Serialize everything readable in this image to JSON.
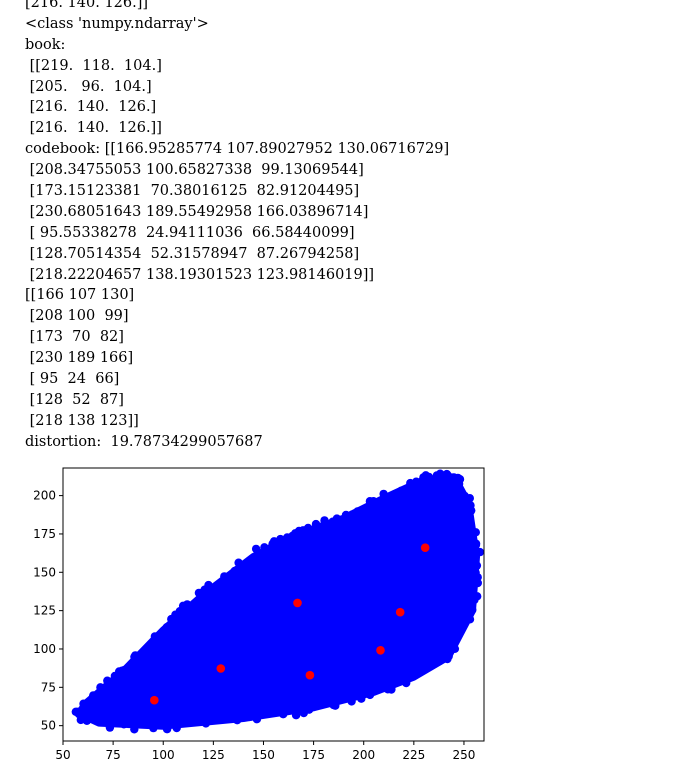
{
  "output_lines": [
    "[216. 140. 126.]]",
    "<class 'numpy.ndarray'>",
    "book:",
    " [[219.  118.  104.]",
    " [205.   96.  104.]",
    " [216.  140.  126.]",
    " [216.  140.  126.]]",
    "codebook: [[166.95285774 107.89027952 130.06716729]",
    " [208.34755053 100.65827338  99.13069544]",
    " [173.15123381  70.38016125  82.91204495]",
    " [230.68051643 189.55492958 166.03896714]",
    " [ 95.55338278  24.94111036  66.58440099]",
    " [128.70514354  52.31578947  87.26794258]",
    " [218.22204657 138.19301523 123.98146019]]",
    "[[166 107 130]",
    " [208 100  99]",
    " [173  70  82]",
    " [230 189 166]",
    " [ 95  24  66]",
    " [128  52  87]",
    " [218 138 123]]",
    "distortion:  19.78734299057687"
  ],
  "chart_data": {
    "type": "scatter",
    "title": "",
    "xlabel": "",
    "ylabel": "",
    "xlim": [
      50,
      260
    ],
    "ylim": [
      40,
      218
    ],
    "xticks": [
      50,
      75,
      100,
      125,
      150,
      175,
      200,
      225,
      250
    ],
    "yticks": [
      50,
      75,
      100,
      125,
      150,
      175,
      200
    ],
    "grid": false,
    "legend": false,
    "series": [
      {
        "color": "#0000ff",
        "marker": "o",
        "region": {
          "description_points": [
            [
              58,
              58
            ],
            [
              68,
              52
            ],
            [
              100,
              50
            ],
            [
              140,
              55
            ],
            [
              175,
              62
            ],
            [
              205,
              72
            ],
            [
              225,
              82
            ],
            [
              242,
              95
            ],
            [
              254,
              125
            ],
            [
              256,
              160
            ],
            [
              252,
              195
            ],
            [
              245,
              212
            ],
            [
              230,
              210
            ],
            [
              210,
              198
            ],
            [
              190,
              185
            ],
            [
              175,
              178
            ],
            [
              160,
              170
            ],
            [
              145,
              160
            ],
            [
              120,
              135
            ],
            [
              100,
              112
            ],
            [
              80,
              85
            ],
            [
              62,
              65
            ]
          ]
        }
      },
      {
        "color": "#ff0000",
        "marker": "o",
        "points": [
          {
            "x": 166.95,
            "y": 130.07
          },
          {
            "x": 208.35,
            "y": 99.13
          },
          {
            "x": 173.15,
            "y": 82.91
          },
          {
            "x": 230.68,
            "y": 166.04
          },
          {
            "x": 95.55,
            "y": 66.58
          },
          {
            "x": 128.71,
            "y": 87.27
          },
          {
            "x": 218.22,
            "y": 123.98
          }
        ]
      }
    ]
  }
}
